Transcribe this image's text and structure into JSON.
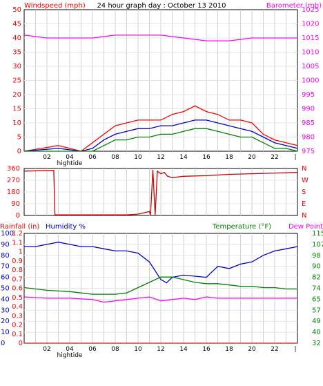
{
  "chart_data": [
    {
      "type": "line",
      "title": "24 hour graph day : October 13 2010",
      "left_axis_label": "Windspeed (mph)",
      "right_axis_label": "Barometer (mb)",
      "x_ticks": [
        "02",
        "04",
        "06",
        "08",
        "10",
        "12",
        "14",
        "16",
        "18",
        "20",
        "22"
      ],
      "x_note": "hightide",
      "xlim": [
        0,
        24
      ],
      "ylim_left": [
        0,
        50
      ],
      "ylim_right": [
        975,
        1025
      ],
      "left_ticks": [
        0,
        5,
        10,
        15,
        20,
        25,
        30,
        35,
        40,
        45,
        50
      ],
      "right_ticks": [
        975,
        980,
        985,
        990,
        995,
        1000,
        1005,
        1010,
        1015,
        1020,
        1025
      ],
      "grid": true,
      "series": [
        {
          "color": "#ff0000",
          "values_x": [
            0,
            1.5,
            3,
            4,
            5,
            6,
            7,
            8,
            9,
            10,
            11,
            12,
            13,
            14,
            15,
            16,
            17,
            18,
            19,
            20,
            21,
            22,
            23,
            24
          ],
          "values_y": [
            0,
            1,
            2,
            1,
            0,
            3,
            6,
            9,
            10,
            11,
            11,
            11,
            13,
            14,
            16,
            14,
            13,
            11,
            11,
            10,
            6,
            4,
            3,
            2
          ]
        },
        {
          "color": "#0000cc",
          "values_x": [
            0,
            1.5,
            3,
            4,
            5,
            6,
            7,
            8,
            9,
            10,
            11,
            12,
            13,
            14,
            15,
            16,
            17,
            18,
            19,
            20,
            21,
            22,
            23,
            24
          ],
          "values_y": [
            0,
            0.5,
            1,
            0.5,
            0,
            1,
            4,
            6,
            7,
            8,
            8,
            9,
            9,
            10,
            11,
            11,
            10,
            9,
            8,
            7,
            5,
            3,
            2,
            1
          ]
        },
        {
          "color": "#008000",
          "values_x": [
            0,
            1.5,
            3,
            4,
            5,
            6,
            7,
            8,
            9,
            10,
            11,
            12,
            13,
            14,
            15,
            16,
            17,
            18,
            19,
            20,
            21,
            22,
            23,
            24
          ],
          "values_y": [
            0,
            0,
            0,
            0,
            0,
            0,
            2,
            4,
            4,
            5,
            5,
            6,
            6,
            7,
            8,
            8,
            7,
            6,
            5,
            5,
            3,
            1,
            1,
            0
          ]
        },
        {
          "color": "#ff00ff",
          "axis": "right",
          "values_x": [
            0,
            2,
            4,
            6,
            8,
            10,
            12,
            14,
            16,
            18,
            20,
            22,
            24
          ],
          "values_y": [
            1016,
            1015,
            1015,
            1015,
            1016,
            1016,
            1016,
            1015,
            1014,
            1014,
            1015,
            1015,
            1015
          ]
        }
      ]
    },
    {
      "type": "line",
      "left_ticks": [
        0,
        90,
        180,
        270,
        360
      ],
      "compass_ticks": [
        "N",
        "W",
        "S",
        "E",
        "N"
      ],
      "ylim": [
        0,
        360
      ],
      "xlim": [
        0,
        24
      ],
      "series": [
        {
          "color": "#cc0000",
          "values_x": [
            0,
            2.6,
            2.7,
            5,
            7,
            9,
            10,
            10.5,
            11,
            11.1,
            11.3,
            11.5,
            11.7,
            12,
            12.3,
            12.6,
            13,
            14,
            16,
            18,
            20,
            22,
            24
          ],
          "values_y": [
            340,
            345,
            5,
            5,
            5,
            5,
            10,
            20,
            30,
            5,
            350,
            5,
            340,
            320,
            330,
            300,
            290,
            300,
            305,
            315,
            320,
            325,
            330
          ]
        }
      ]
    },
    {
      "type": "line",
      "left_label_a": "Rainfall (in)",
      "left_label_b": "Humidity %",
      "right_label_a": "Temperature (°F)",
      "right_label_b": "Dew Point",
      "x_ticks": [
        "02",
        "04",
        "06",
        "08",
        "10",
        "12",
        "14",
        "16",
        "18",
        "20",
        "22"
      ],
      "x_note": "hightide",
      "xlim": [
        0,
        24
      ],
      "rain_ticks": [
        "0",
        "0.1",
        "0.2",
        "0.3",
        "0.4",
        "0.5",
        "0.6",
        "0.7",
        "0.8",
        "0.9",
        "1",
        "1.1",
        "1.2"
      ],
      "humidity_ticks": [
        0,
        10,
        20,
        30,
        40,
        50,
        60,
        70,
        80,
        90,
        100
      ],
      "temp_ticks": [
        32,
        40,
        49,
        57,
        65,
        74,
        82,
        90,
        98,
        107,
        115
      ],
      "ylim_humidity": [
        0,
        100
      ],
      "ylim_temp": [
        32,
        115
      ],
      "series": [
        {
          "name": "Humidity %",
          "color": "#0000cc",
          "axis": "humidity",
          "values_x": [
            0,
            1,
            2,
            3,
            4,
            5,
            6,
            7,
            8,
            9,
            10,
            11,
            11.5,
            12,
            12.5,
            13,
            14,
            15,
            16,
            17,
            18,
            19,
            20,
            21,
            22,
            23,
            24
          ],
          "values_y": [
            88,
            88,
            90,
            92,
            90,
            88,
            88,
            86,
            84,
            84,
            82,
            74,
            66,
            58,
            55,
            60,
            62,
            61,
            60,
            70,
            68,
            72,
            74,
            80,
            84,
            86,
            88
          ]
        },
        {
          "name": "Temperature (°F)",
          "color": "#008000",
          "axis": "temp",
          "values_x": [
            0,
            2,
            4,
            6,
            8,
            9,
            10,
            11,
            12,
            13,
            14,
            15,
            16,
            17,
            18,
            19,
            20,
            21,
            22,
            23,
            24
          ],
          "values_y": [
            74,
            72,
            71,
            69,
            69,
            70,
            74,
            78,
            82,
            82,
            80,
            78,
            77,
            77,
            76,
            75,
            75,
            74,
            74,
            73,
            73
          ]
        },
        {
          "name": "Dew Point",
          "color": "#ff00ff",
          "axis": "temp",
          "values_x": [
            0,
            2,
            4,
            6,
            7,
            8,
            10,
            11,
            12,
            13,
            14,
            15,
            16,
            17,
            18,
            20,
            22,
            24
          ],
          "values_y": [
            67,
            66,
            66,
            65,
            63,
            64,
            66,
            67,
            64,
            65,
            66,
            65,
            67,
            66,
            66,
            66,
            66,
            66
          ]
        },
        {
          "name": "Rainfall (in)",
          "color": "#ff0000",
          "axis": "rain",
          "values_x": [
            0,
            24
          ],
          "values_y": [
            0,
            0
          ]
        }
      ]
    }
  ]
}
